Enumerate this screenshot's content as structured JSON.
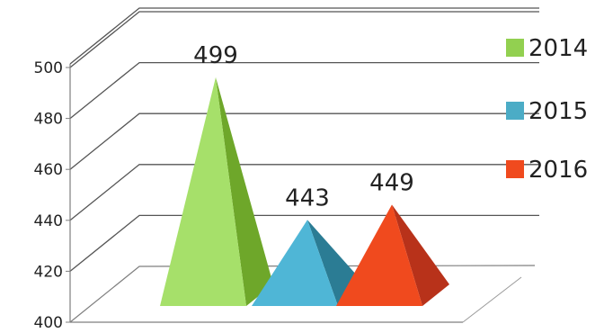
{
  "chart_data": {
    "type": "bar",
    "style": "3d-pyramid",
    "categories": [
      "2014",
      "2015",
      "2016"
    ],
    "values": [
      499,
      443,
      449
    ],
    "data_labels": [
      "499",
      "443",
      "449"
    ],
    "ylim": [
      400,
      500
    ],
    "yticks": [
      "400",
      "420",
      "440",
      "460",
      "480",
      "500"
    ],
    "grid": true,
    "legend_position": "right",
    "legend": [
      {
        "label": "2014",
        "color": "#92d050"
      },
      {
        "label": "2015",
        "color": "#4bacc6"
      },
      {
        "label": "2016",
        "color": "#f04a1e"
      }
    ],
    "colors": {
      "2014": {
        "light": "#a6e06a",
        "dark": "#6ea72a"
      },
      "2015": {
        "light": "#4fb6d6",
        "dark": "#2b7c94"
      },
      "2016": {
        "light": "#f04a1e",
        "dark": "#b8321a"
      }
    }
  }
}
